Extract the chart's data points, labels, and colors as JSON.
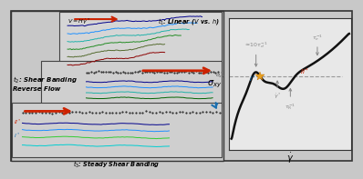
{
  "bg_color": "#c8c8c8",
  "panel_bg": "#d0d0d0",
  "box_bg": "#d8d8d8",
  "t1_label": "$t_1$: Linear ($V$ vs. $h$)",
  "t2_label": "$t_2$: Shear Banding\nReverse Flow",
  "t3_label": "$t_3$: Steady Shear Banding",
  "V_label": "$V = H\\dot{\\gamma}^*$",
  "xlabel_right": "$\\dot{\\gamma}$",
  "ylabel_right": "$\\sigma_{xy}$",
  "sigma_label": "$\\sigma^*_{xy}$",
  "tau_d_label": "$\\approx\\!10\\tau_d^{-1}$",
  "tau_e_label": "$\\tau_e^{-1}$",
  "tau_R_label": "$\\tau_R^{-1}$",
  "I_label": "$I^*$",
  "II_label": "$II^*$",
  "gdot_label": "$\\dot{\\gamma}^*$",
  "arrow_color": "#1a6faf",
  "red_arrow_color": "#cc2200",
  "curve_color": "#111111",
  "star_color": "#e8a020",
  "annotation_color": "#777777",
  "I_color": "#1a6faf",
  "II_color": "#cc2200",
  "colors_t1": [
    "#8B0000",
    "#556B2F",
    "#228B22",
    "#20B2AA",
    "#1E90FF",
    "#00008B"
  ],
  "colors_t2_bottom": [
    "#006400",
    "#20B2AA",
    "#1E90FF",
    "#00008B"
  ],
  "colors_t3_bottom": [
    "#00CED1",
    "#32CD32",
    "#1E90FF",
    "#00008B"
  ],
  "trace_black": "#111111"
}
